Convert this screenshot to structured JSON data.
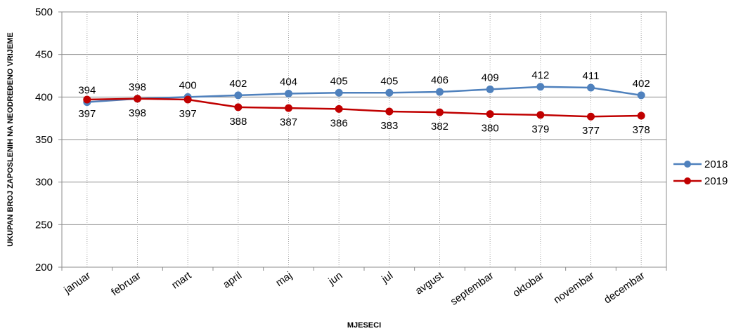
{
  "chart_data": {
    "type": "line",
    "title": "",
    "xlabel": "MJESECI",
    "ylabel": "UKUPAN BROJ ZAPOSLENIH NA NEODREĐENO VRIJEME",
    "ylim": [
      200,
      500
    ],
    "yticks": [
      200,
      250,
      300,
      350,
      400,
      450,
      500
    ],
    "grid": true,
    "legend_position": "right",
    "categories": [
      "januar",
      "februar",
      "mart",
      "april",
      "maj",
      "jun",
      "jul",
      "avgust",
      "septembar",
      "oktobar",
      "novembar",
      "decembar"
    ],
    "series": [
      {
        "name": "2018",
        "color": "#4F81BD",
        "values": [
          394,
          398,
          400,
          402,
          404,
          405,
          405,
          406,
          409,
          412,
          411,
          402
        ],
        "label_position": "above"
      },
      {
        "name": "2019",
        "color": "#C00000",
        "values": [
          397,
          398,
          397,
          388,
          387,
          386,
          383,
          382,
          380,
          379,
          377,
          378
        ],
        "label_position": "below"
      }
    ]
  }
}
